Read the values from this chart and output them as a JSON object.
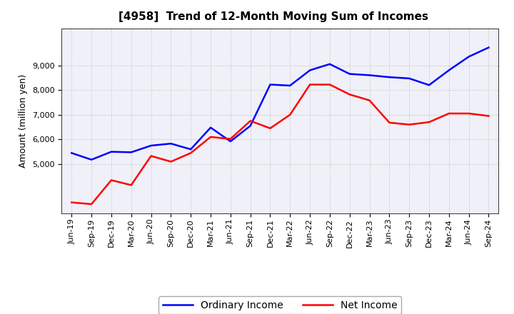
{
  "title": "[4958]  Trend of 12-Month Moving Sum of Incomes",
  "ylabel": "Amount (million yen)",
  "x_labels": [
    "Jun-19",
    "Sep-19",
    "Dec-19",
    "Mar-20",
    "Jun-20",
    "Sep-20",
    "Dec-20",
    "Mar-21",
    "Jun-21",
    "Sep-21",
    "Dec-21",
    "Mar-22",
    "Jun-22",
    "Sep-22",
    "Dec-22",
    "Mar-23",
    "Jun-23",
    "Sep-23",
    "Dec-23",
    "Mar-24",
    "Jun-24",
    "Sep-24"
  ],
  "ordinary_income": [
    5450,
    5180,
    5500,
    5480,
    5750,
    5830,
    5600,
    6480,
    5920,
    6550,
    8220,
    8180,
    8800,
    9050,
    8650,
    8600,
    8520,
    8470,
    8200,
    8800,
    9350,
    9720
  ],
  "net_income": [
    3450,
    3380,
    4350,
    4150,
    5330,
    5100,
    5450,
    6100,
    6020,
    6750,
    6450,
    7000,
    8220,
    8220,
    7820,
    7580,
    6680,
    6600,
    6700,
    7050,
    7050,
    6950
  ],
  "ordinary_color": "#0000FF",
  "net_color": "#FF0000",
  "ylim_min": 3000,
  "ylim_max": 10500,
  "yticks": [
    5000,
    6000,
    7000,
    8000,
    9000
  ],
  "grid_color": "#bbbbbb",
  "bg_color": "#f0f0f8",
  "plot_bg_color": "#f0f0f8",
  "legend_labels": [
    "Ordinary Income",
    "Net Income"
  ],
  "title_fontsize": 11,
  "axis_fontsize": 9,
  "tick_fontsize": 8,
  "linewidth": 1.8
}
